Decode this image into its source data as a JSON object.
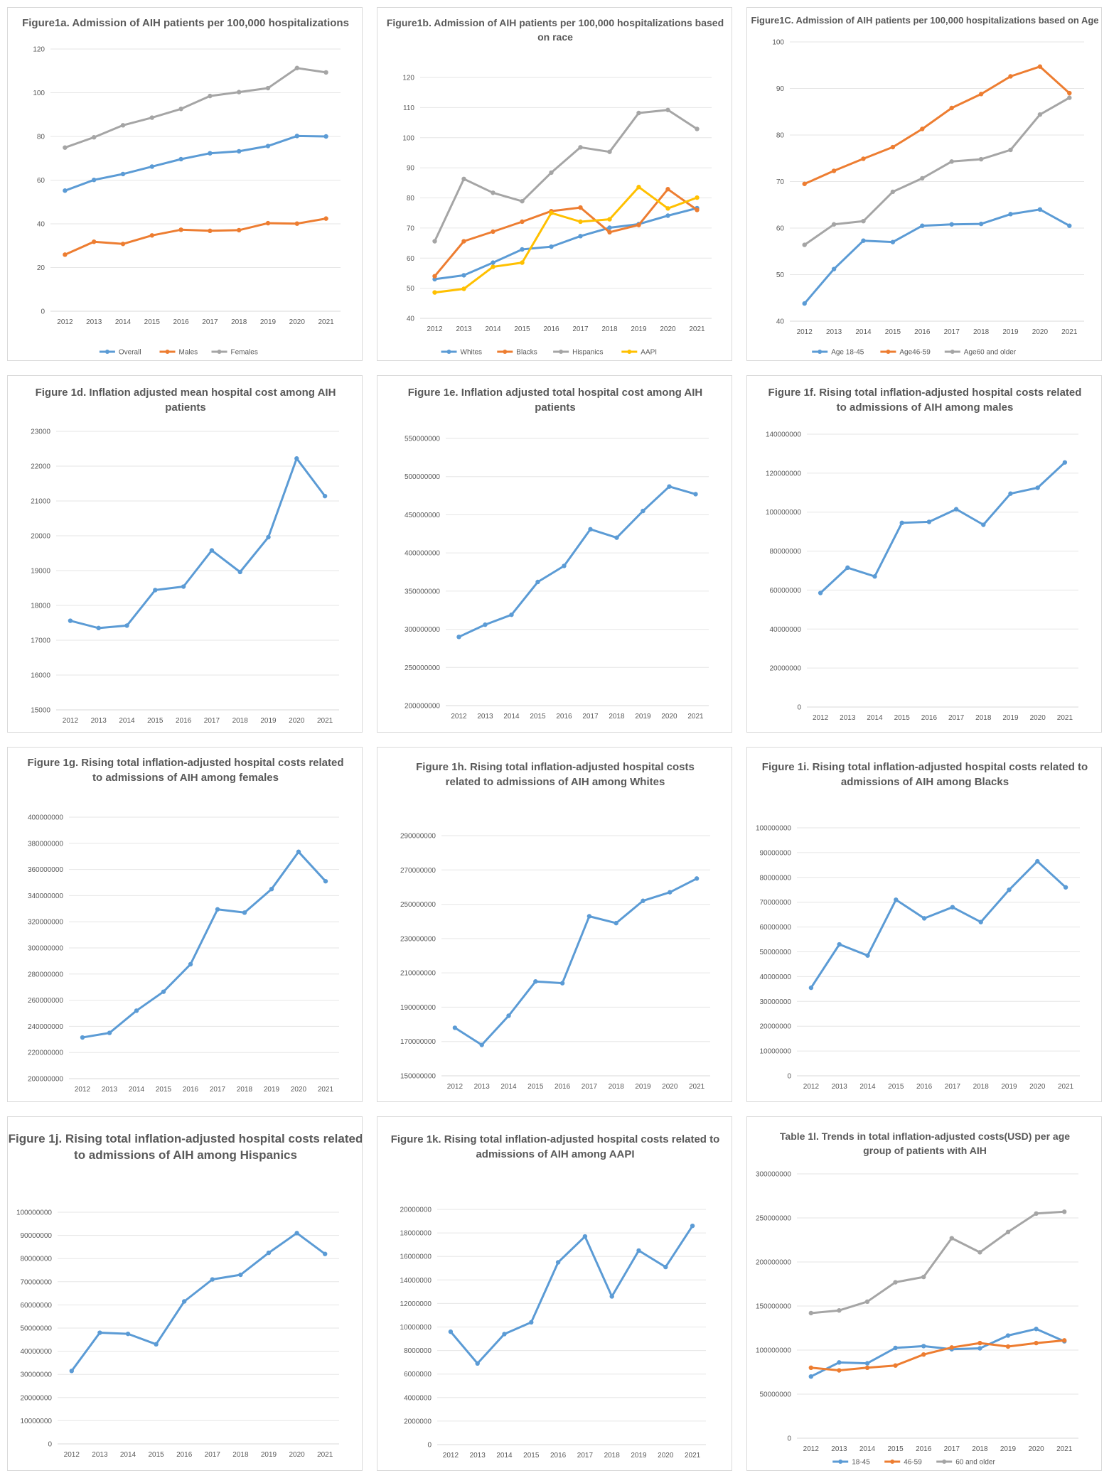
{
  "chart_data": [
    {
      "id": "fig1a",
      "type": "line",
      "title": "Figure1a. Admission of AIH patients per 100,000 hospitalizations",
      "categories": [
        "2012",
        "2013",
        "2014",
        "2015",
        "2016",
        "2017",
        "2018",
        "2019",
        "2020",
        "2021"
      ],
      "ylim": [
        0,
        120
      ],
      "yticks": [
        0,
        20,
        40,
        60,
        80,
        100,
        120
      ],
      "legend": "bottom",
      "series": [
        {
          "name": "Overall",
          "color": "#5b9bd5",
          "values": [
            55.2,
            60.1,
            62.8,
            66.2,
            69.6,
            72.3,
            73.2,
            75.6,
            80.2,
            80.0
          ]
        },
        {
          "name": "Males",
          "color": "#ed7d31",
          "values": [
            25.9,
            31.8,
            30.8,
            34.7,
            37.3,
            36.8,
            37.1,
            40.3,
            40.1,
            42.4
          ]
        },
        {
          "name": "Females",
          "color": "#a5a5a5",
          "values": [
            74.9,
            79.6,
            85.1,
            88.6,
            92.6,
            98.5,
            100.3,
            102.1,
            111.3,
            109.3
          ]
        }
      ]
    },
    {
      "id": "fig1b",
      "type": "line",
      "title": "Figure1b. Admission of AIH patients per 100,000 hospitalizations based on race",
      "categories": [
        "2012",
        "2013",
        "2014",
        "2015",
        "2016",
        "2017",
        "2018",
        "2019",
        "2020",
        "2021"
      ],
      "ylim": [
        40,
        120
      ],
      "yticks": [
        40,
        50,
        60,
        70,
        80,
        90,
        100,
        110,
        120
      ],
      "legend": "bottom",
      "series": [
        {
          "name": "Whites",
          "color": "#5b9bd5",
          "values": [
            53.0,
            54.3,
            58.5,
            62.9,
            63.8,
            67.3,
            70.1,
            71.3,
            74.1,
            76.6
          ]
        },
        {
          "name": "Blacks",
          "color": "#ed7d31",
          "values": [
            54.0,
            65.6,
            68.8,
            72.1,
            75.6,
            76.8,
            68.6,
            71.0,
            82.9,
            76.0
          ]
        },
        {
          "name": "Hispanics",
          "color": "#a5a5a5",
          "values": [
            65.6,
            86.3,
            81.7,
            78.9,
            88.4,
            96.8,
            95.3,
            108.2,
            109.2,
            102.9
          ]
        },
        {
          "name": "AAPI",
          "color": "#ffc000",
          "values": [
            48.6,
            49.8,
            57.1,
            58.5,
            75.0,
            72.1,
            72.9,
            83.6,
            76.5,
            80.1
          ]
        }
      ]
    },
    {
      "id": "fig1c",
      "type": "line",
      "title": "Figure1C. Admission of AIH patients per 100,000 hospitalizations based on Age",
      "categories": [
        "2012",
        "2013",
        "2014",
        "2015",
        "2016",
        "2017",
        "2018",
        "2019",
        "2020",
        "2021"
      ],
      "ylim": [
        40,
        100
      ],
      "yticks": [
        40,
        50,
        60,
        70,
        80,
        90,
        100
      ],
      "legend": "bottom",
      "series": [
        {
          "name": "Age 18-45",
          "color": "#5b9bd5",
          "values": [
            43.8,
            51.2,
            57.3,
            57.0,
            60.5,
            60.8,
            60.9,
            63.0,
            64.0,
            60.5
          ]
        },
        {
          "name": "Age46-59",
          "color": "#ed7d31",
          "values": [
            69.5,
            72.3,
            74.9,
            77.4,
            81.3,
            85.8,
            88.8,
            92.6,
            94.7,
            89.0
          ]
        },
        {
          "name": "Age60 and older",
          "color": "#a5a5a5",
          "values": [
            56.4,
            60.8,
            61.5,
            67.8,
            70.7,
            74.3,
            74.8,
            76.8,
            84.4,
            88.0
          ]
        }
      ]
    },
    {
      "id": "fig1d",
      "type": "line",
      "title": "Figure 1d. Inflation adjusted mean hospital cost among AIH patients",
      "categories": [
        "2012",
        "2013",
        "2014",
        "2015",
        "2016",
        "2017",
        "2018",
        "2019",
        "2020",
        "2021"
      ],
      "ylim": [
        15000,
        23000
      ],
      "yticks": [
        15000,
        16000,
        17000,
        18000,
        19000,
        20000,
        21000,
        22000,
        23000
      ],
      "series": [
        {
          "name": "",
          "color": "#5b9bd5",
          "values": [
            17560,
            17350,
            17420,
            18440,
            18540,
            19580,
            18960,
            19960,
            22220,
            21140
          ]
        }
      ]
    },
    {
      "id": "fig1e",
      "type": "line",
      "title": "Figure 1e. Inflation adjusted total hospital cost among AIH patients",
      "categories": [
        "2012",
        "2013",
        "2014",
        "2015",
        "2016",
        "2017",
        "2018",
        "2019",
        "2020",
        "2021"
      ],
      "ylim": [
        200000000,
        550000000
      ],
      "yticks": [
        200000000,
        250000000,
        300000000,
        350000000,
        400000000,
        450000000,
        500000000,
        550000000
      ],
      "series": [
        {
          "name": "",
          "color": "#5b9bd5",
          "values": [
            290000000,
            306000000,
            319000000,
            362000000,
            383000000,
            431000000,
            420000000,
            455000000,
            487000000,
            477000000
          ]
        }
      ]
    },
    {
      "id": "fig1f",
      "type": "line",
      "title": "Figure 1f. Rising total inflation-adjusted hospital costs related to admissions of AIH among males",
      "categories": [
        "2012",
        "2013",
        "2014",
        "2015",
        "2016",
        "2017",
        "2018",
        "2019",
        "2020",
        "2021"
      ],
      "ylim": [
        0,
        140000000
      ],
      "yticks": [
        0,
        20000000,
        40000000,
        60000000,
        80000000,
        100000000,
        120000000,
        140000000
      ],
      "series": [
        {
          "name": "",
          "color": "#5b9bd5",
          "values": [
            58500000,
            71500000,
            67000000,
            94500000,
            95000000,
            101500000,
            93500000,
            109500000,
            112500000,
            125500000
          ]
        }
      ]
    },
    {
      "id": "fig1g",
      "type": "line",
      "title": "Figure 1g. Rising total inflation-adjusted hospital costs related to admissions of AIH among females",
      "categories": [
        "2012",
        "2013",
        "2014",
        "2015",
        "2016",
        "2017",
        "2018",
        "2019",
        "2020",
        "2021"
      ],
      "ylim": [
        200000000,
        400000000
      ],
      "yticks": [
        200000000,
        220000000,
        240000000,
        260000000,
        280000000,
        300000000,
        320000000,
        340000000,
        360000000,
        380000000,
        400000000
      ],
      "series": [
        {
          "name": "",
          "color": "#5b9bd5",
          "values": [
            231500000,
            235000000,
            252000000,
            266500000,
            287500000,
            329500000,
            327000000,
            345000000,
            373500000,
            351000000
          ]
        }
      ]
    },
    {
      "id": "fig1h",
      "type": "line",
      "title": "Figure 1h. Rising total inflation-adjusted hospital costs related to admissions of AIH among Whites",
      "categories": [
        "2012",
        "2013",
        "2014",
        "2015",
        "2016",
        "2017",
        "2018",
        "2019",
        "2020",
        "2021"
      ],
      "ylim": [
        150000000,
        290000000
      ],
      "yticks": [
        150000000,
        170000000,
        190000000,
        210000000,
        230000000,
        250000000,
        270000000,
        290000000
      ],
      "series": [
        {
          "name": "",
          "color": "#5b9bd5",
          "values": [
            178000000,
            168000000,
            185000000,
            205000000,
            204000000,
            243000000,
            239000000,
            252000000,
            257000000,
            265000000
          ]
        }
      ]
    },
    {
      "id": "fig1i",
      "type": "line",
      "title": "Figure 1i. Rising total inflation-adjusted hospital costs related to admissions of AIH among Blacks",
      "categories": [
        "2012",
        "2013",
        "2014",
        "2015",
        "2016",
        "2017",
        "2018",
        "2019",
        "2020",
        "2021"
      ],
      "ylim": [
        0,
        100000000
      ],
      "yticks": [
        0,
        10000000,
        20000000,
        30000000,
        40000000,
        50000000,
        60000000,
        70000000,
        80000000,
        90000000,
        100000000
      ],
      "series": [
        {
          "name": "",
          "color": "#5b9bd5",
          "values": [
            35500000,
            53000000,
            48500000,
            71000000,
            63500000,
            68000000,
            62000000,
            75000000,
            86500000,
            76000000
          ]
        }
      ]
    },
    {
      "id": "fig1j",
      "type": "line",
      "title": "Figure 1j. Rising total inflation-adjusted hospital costs related to admissions of AIH among Hispanics",
      "categories": [
        "2012",
        "2013",
        "2014",
        "2015",
        "2016",
        "2017",
        "2018",
        "2019",
        "2020",
        "2021"
      ],
      "ylim": [
        0,
        100000000
      ],
      "yticks": [
        0,
        10000000,
        20000000,
        30000000,
        40000000,
        50000000,
        60000000,
        70000000,
        80000000,
        90000000,
        100000000
      ],
      "series": [
        {
          "name": "",
          "color": "#5b9bd5",
          "values": [
            31500000,
            48000000,
            47500000,
            43000000,
            61500000,
            71000000,
            73000000,
            82500000,
            91000000,
            82000000
          ]
        }
      ]
    },
    {
      "id": "fig1k",
      "type": "line",
      "title": "Figure 1k. Rising total inflation-adjusted hospital costs related to admissions of AIH among AAPI",
      "categories": [
        "2012",
        "2013",
        "2014",
        "2015",
        "2016",
        "2017",
        "2018",
        "2019",
        "2020",
        "2021"
      ],
      "ylim": [
        0,
        20000000
      ],
      "yticks": [
        0,
        2000000,
        4000000,
        6000000,
        8000000,
        10000000,
        12000000,
        14000000,
        16000000,
        18000000,
        20000000
      ],
      "series": [
        {
          "name": "",
          "color": "#5b9bd5",
          "values": [
            9600000,
            6900000,
            9400000,
            10400000,
            15500000,
            17700000,
            12600000,
            16500000,
            15100000,
            18600000
          ]
        }
      ]
    },
    {
      "id": "fig1l",
      "type": "line",
      "title": "Table 1l. Trends in total inflation-adjusted costs(USD) per age group of patients with AIH",
      "categories": [
        "2012",
        "2013",
        "2014",
        "2015",
        "2016",
        "2017",
        "2018",
        "2019",
        "2020",
        "2021"
      ],
      "ylim": [
        0,
        300000000
      ],
      "yticks": [
        0,
        50000000,
        100000000,
        150000000,
        200000000,
        250000000,
        300000000
      ],
      "legend": "bottom",
      "series": [
        {
          "name": "18-45",
          "color": "#5b9bd5",
          "values": [
            70000000,
            86000000,
            85000000,
            102500000,
            104500000,
            101000000,
            102000000,
            116500000,
            124000000,
            110000000
          ]
        },
        {
          "name": "46-59",
          "color": "#ed7d31",
          "values": [
            80000000,
            77000000,
            80000000,
            82500000,
            95000000,
            103000000,
            108000000,
            104000000,
            108000000,
            111000000
          ]
        },
        {
          "name": "60 and older",
          "color": "#a5a5a5",
          "values": [
            142000000,
            145000000,
            155000000,
            177000000,
            183000000,
            227000000,
            211000000,
            234000000,
            255000000,
            257000000
          ]
        }
      ]
    }
  ]
}
